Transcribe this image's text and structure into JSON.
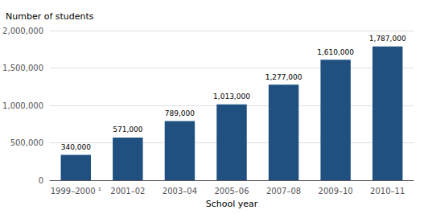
{
  "chart_data": {
    "type": "bar",
    "ylabel": "Number of students",
    "xlabel": "School year",
    "categories": [
      "1999–2000 ¹",
      "2001–02",
      "2003–04",
      "2005–06",
      "2007–08",
      "2009–10",
      "2010–11"
    ],
    "values": [
      340000,
      571000,
      789000,
      1013000,
      1277000,
      1610000,
      1787000
    ],
    "value_labels": [
      "340,000",
      "571,000",
      "789,000",
      "1,013,000",
      "1,277,000",
      "1,610,000",
      "1,787,000"
    ],
    "data_labels": true,
    "color": "#1F5080",
    "ylim": [
      0,
      2000000
    ],
    "yticks": [
      0,
      {
        "value": 500000,
        "label": "500,000"
      },
      {
        "value": 1000000,
        "label": "1,000,000"
      },
      {
        "value": 1500000,
        "label": "1,500,000"
      },
      {
        "value": 2000000,
        "label": "2,000,000"
      }
    ],
    "grid": true
  }
}
